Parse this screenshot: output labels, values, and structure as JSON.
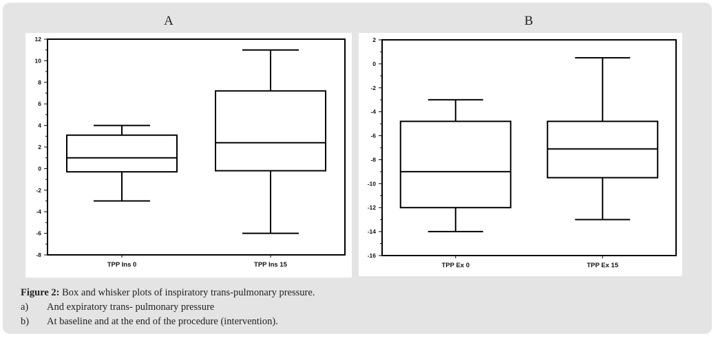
{
  "panels": [
    {
      "letter": "A"
    },
    {
      "letter": "B"
    }
  ],
  "chart_data": [
    {
      "type": "box",
      "ylim": [
        -8,
        12
      ],
      "yticks": [
        "12",
        "10",
        "8",
        "6",
        "4",
        "2",
        "0",
        "-2",
        "-4",
        "-6",
        "-8"
      ],
      "ytick_values": [
        12,
        10,
        8,
        6,
        4,
        2,
        0,
        -2,
        -4,
        -6,
        -8
      ],
      "categories": [
        "TPP Ins 0",
        "TPP Ins 15"
      ],
      "boxes": [
        {
          "min": -3,
          "q1": -0.3,
          "median": 1,
          "q3": 3.1,
          "max": 4
        },
        {
          "min": -6,
          "q1": -0.2,
          "median": 2.4,
          "q3": 7.2,
          "max": 11
        }
      ]
    },
    {
      "type": "box",
      "ylim": [
        -16,
        2
      ],
      "yticks": [
        "2",
        "0",
        "-2",
        "-4",
        "-6",
        "-8",
        "-10",
        "-12",
        "-14",
        "-16"
      ],
      "ytick_values": [
        2,
        0,
        -2,
        -4,
        -6,
        -8,
        -10,
        -12,
        -14,
        -16
      ],
      "categories": [
        "TPP Ex 0",
        "TPP Ex 15"
      ],
      "boxes": [
        {
          "min": -14,
          "q1": -12,
          "median": -9,
          "q3": -4.8,
          "max": -3
        },
        {
          "min": -13,
          "q1": -9.5,
          "median": -7.1,
          "q3": -4.8,
          "max": 0.5
        }
      ]
    }
  ],
  "caption": {
    "title_bold": "Figure 2:",
    "title_rest": " Box and whisker plots of inspiratory trans-pulmonary pressure.",
    "items": [
      {
        "label": "a)",
        "text": "And expiratory trans- pulmonary pressure"
      },
      {
        "label": "b)",
        "text": "At baseline and at the end of the procedure (intervention)."
      }
    ]
  }
}
